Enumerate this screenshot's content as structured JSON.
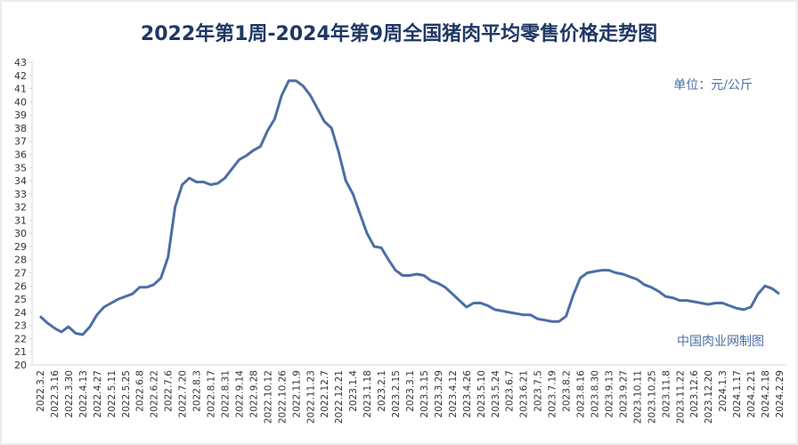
{
  "chart_data": {
    "type": "line",
    "title": "2022年第1周-2024年第9周全国猪肉平均零售价格走势图",
    "annotations": [
      "单位：元/公斤",
      "中国肉业网制图"
    ],
    "categories": [
      "2022.3.2",
      null,
      "2022.3.16",
      null,
      "2022.3.30",
      null,
      "2022.4.13",
      null,
      "2022.4.27",
      null,
      "2022.5.11",
      null,
      "2022.5.25",
      null,
      "2022.6.8",
      null,
      "2022.6.22",
      null,
      "2022.7.6",
      null,
      "2022.7.20",
      null,
      "2022.8.3",
      null,
      "2022.8.17",
      null,
      "2022.8.31",
      null,
      "2022.9.14",
      null,
      "2022.9.28",
      null,
      "2022.10.12",
      null,
      "2022.10.26",
      null,
      "2022.11.9",
      null,
      "2022.11.23",
      null,
      "2022.12.7",
      null,
      "2022.12.21",
      null,
      "2023.1.4",
      null,
      "2023.1.18",
      null,
      "2023.2.1",
      null,
      "2023.2.15",
      null,
      "2023.3.1",
      null,
      "2023.3.15",
      null,
      "2023.3.29",
      null,
      "2023.4.12",
      null,
      "2023.4.26",
      null,
      "2023.5.10",
      null,
      "2023.5.24",
      null,
      "2023.6.7",
      null,
      "2023.6.21",
      null,
      "2023.7.5",
      null,
      "2023.7.19",
      null,
      "2023.8.2",
      null,
      "2023.8.16",
      null,
      "2023.8.30",
      null,
      "2023.9.13",
      null,
      "2023.9.27",
      null,
      "2023.10.11",
      null,
      "2023.10.25",
      null,
      "2023.11.8",
      null,
      "2023.11.22",
      null,
      "2023.12.6",
      null,
      "2023.12.20",
      null,
      "2024.1.3",
      null,
      "2024.1.17",
      null,
      "2024.2.21",
      null,
      "2024.2.18",
      null,
      "2024.2.29"
    ],
    "series": [
      {
        "color": "#4a6fa5",
        "values": [
          23.7,
          23.2,
          22.8,
          22.5,
          22.9,
          22.4,
          22.3,
          22.9,
          23.8,
          24.4,
          24.7,
          25.0,
          25.2,
          25.4,
          25.9,
          25.9,
          26.1,
          26.6,
          28.2,
          32.0,
          33.7,
          34.2,
          33.9,
          33.9,
          33.7,
          33.8,
          34.2,
          34.9,
          35.6,
          35.9,
          36.3,
          36.6,
          37.8,
          38.7,
          40.5,
          41.6,
          41.6,
          41.2,
          40.5,
          39.5,
          38.5,
          38.0,
          36.2,
          34.0,
          33.0,
          31.5,
          30.0,
          29.0,
          28.9,
          28.0,
          27.2,
          26.8,
          26.8,
          26.9,
          26.8,
          26.4,
          26.2,
          25.9,
          25.4,
          24.9,
          24.4,
          24.7,
          24.7,
          24.5,
          24.2,
          24.1,
          24.0,
          23.9,
          23.8,
          23.8,
          23.5,
          23.4,
          23.3,
          23.3,
          23.7,
          25.3,
          26.6,
          27.0,
          27.1,
          27.2,
          27.2,
          27.0,
          26.9,
          26.7,
          26.5,
          26.1,
          25.9,
          25.6,
          25.2,
          25.1,
          24.9,
          24.9,
          24.8,
          24.7,
          24.6,
          24.7,
          24.7,
          24.5,
          24.3,
          24.2,
          24.4,
          25.4,
          26.0,
          25.8,
          25.4
        ]
      }
    ],
    "ylim": [
      20,
      43
    ],
    "yticks": [
      20,
      21,
      22,
      23,
      24,
      25,
      26,
      27,
      28,
      29,
      30,
      31,
      32,
      33,
      34,
      35,
      36,
      37,
      38,
      39,
      40,
      41,
      42,
      43
    ]
  }
}
